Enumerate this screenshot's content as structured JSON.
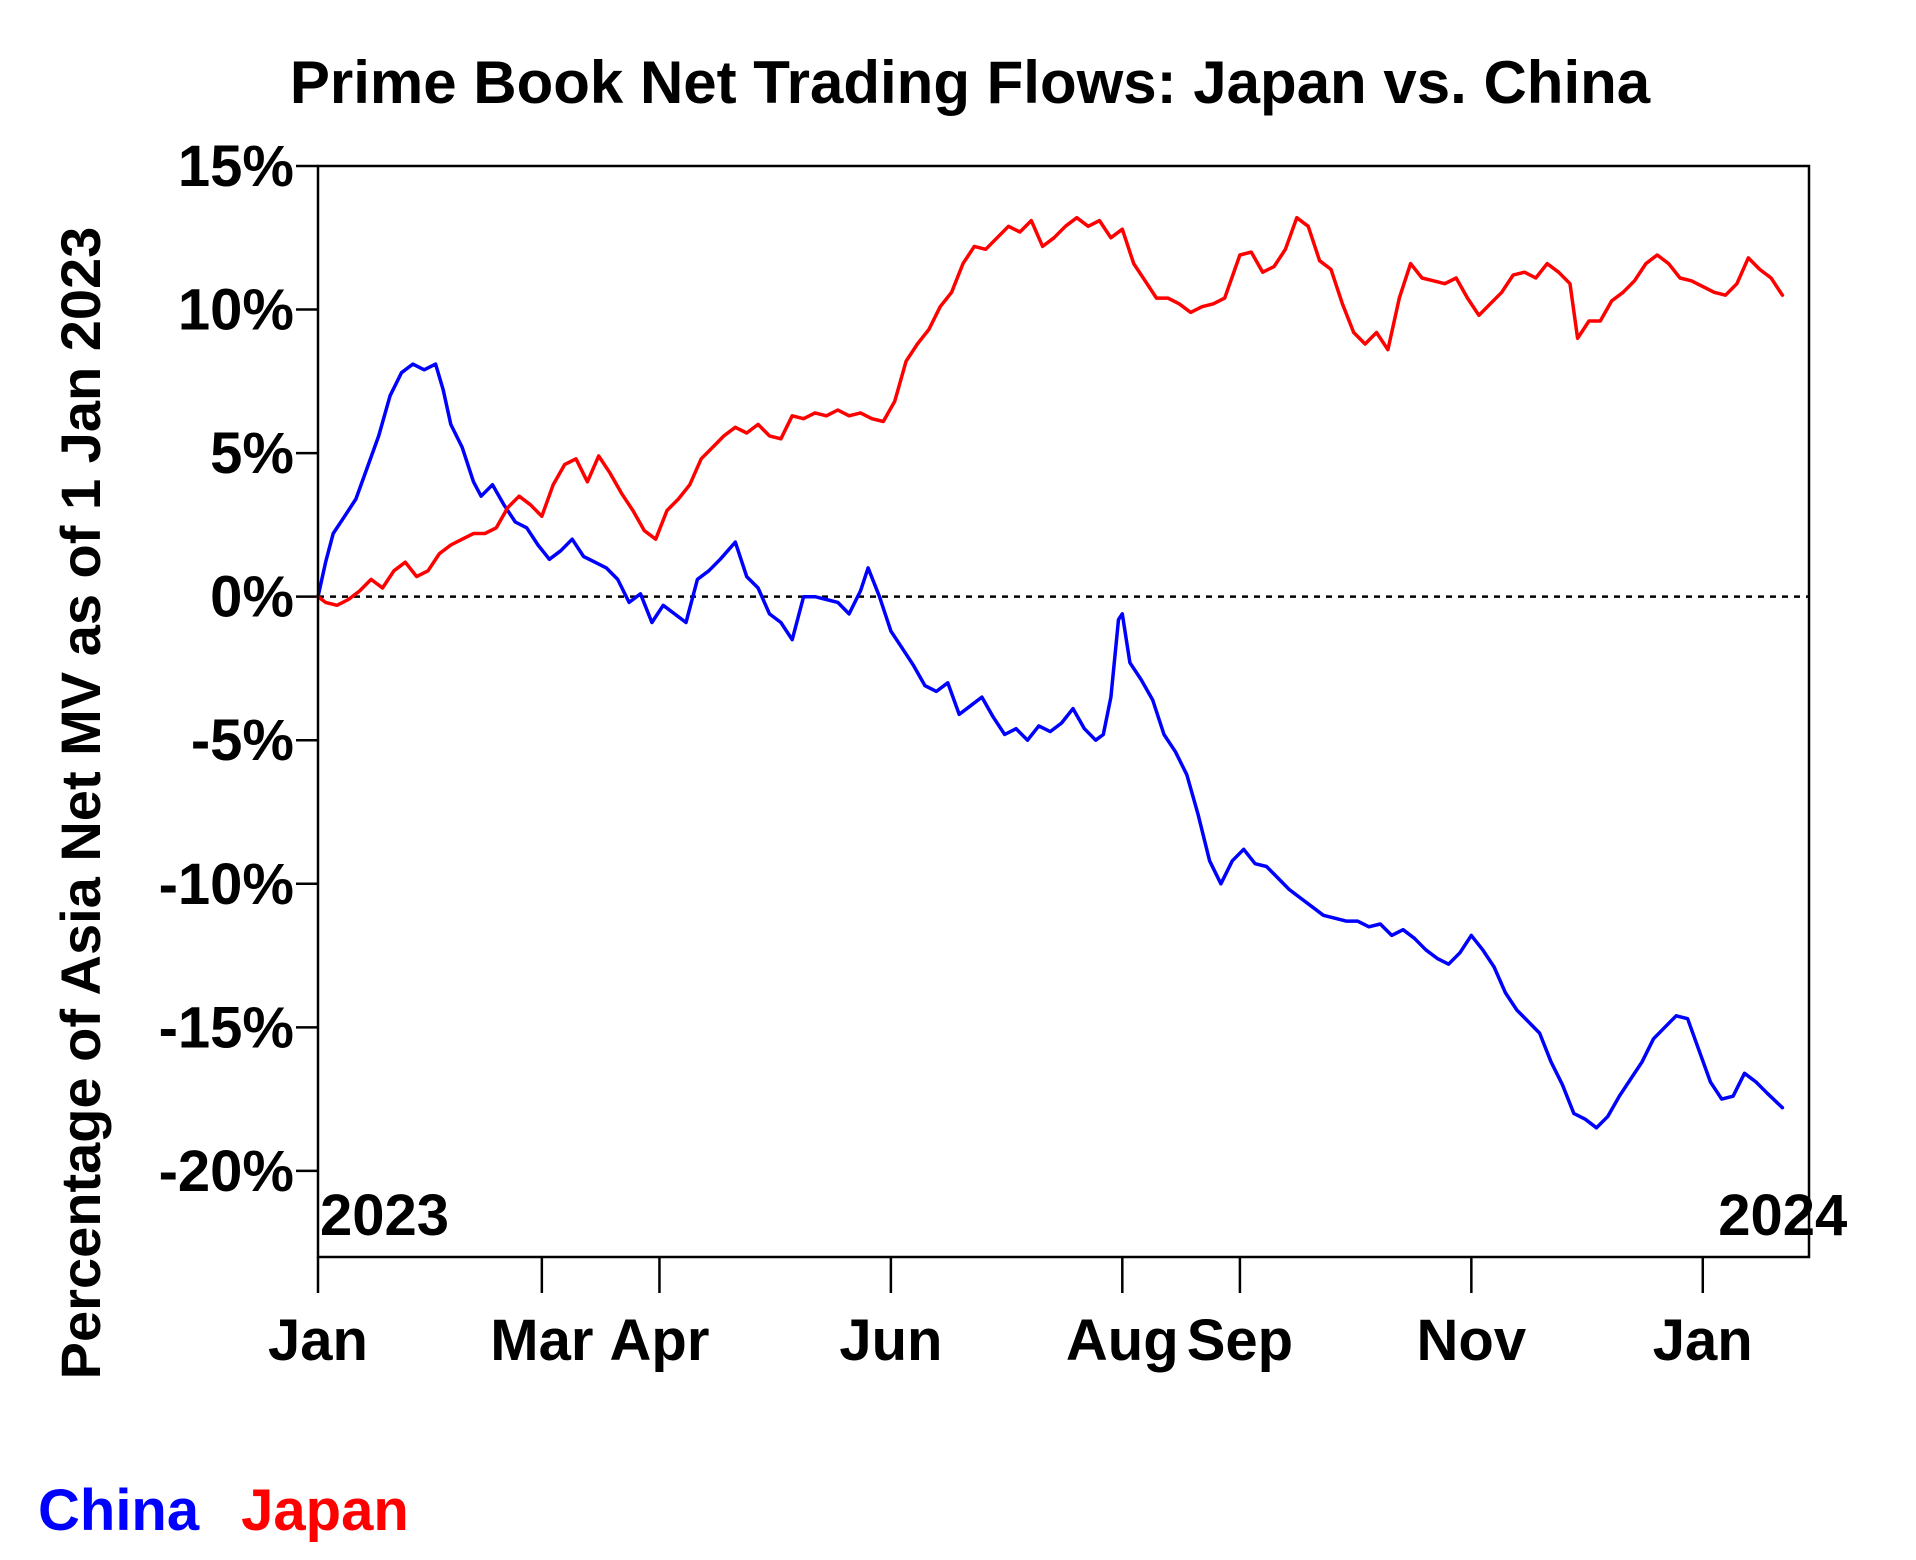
{
  "chart_data": {
    "type": "line",
    "title": "Prime Book Net Trading Flows: Japan vs. China",
    "xlabel": "",
    "ylabel": "Percentage of Asia Net MV as of 1 Jan 2023",
    "ylim": [
      -23,
      15
    ],
    "xlim": [
      "2023-01-01",
      "2024-01-29"
    ],
    "y_ticks": [
      {
        "value": 15,
        "label": "15%"
      },
      {
        "value": 10,
        "label": "10%"
      },
      {
        "value": 5,
        "label": "5%"
      },
      {
        "value": 0,
        "label": "0%"
      },
      {
        "value": -5,
        "label": "-5%"
      },
      {
        "value": -10,
        "label": "-10%"
      },
      {
        "value": -15,
        "label": "-15%"
      },
      {
        "value": -20,
        "label": "-20%"
      }
    ],
    "x_ticks": [
      {
        "date": "2023-01-01",
        "label": "Jan"
      },
      {
        "date": "2023-03-01",
        "label": "Mar"
      },
      {
        "date": "2023-04-01",
        "label": "Apr"
      },
      {
        "date": "2023-06-01",
        "label": "Jun"
      },
      {
        "date": "2023-08-01",
        "label": "Aug"
      },
      {
        "date": "2023-09-01",
        "label": "Sep"
      },
      {
        "date": "2023-11-01",
        "label": "Nov"
      },
      {
        "date": "2024-01-01",
        "label": "Jan"
      }
    ],
    "year_labels": [
      {
        "date": "2023-01-01",
        "label": "2023"
      },
      {
        "date": "2024-01-01",
        "label": "2024"
      }
    ],
    "reference_line": {
      "value": 0,
      "style": "dotted"
    },
    "grid": false,
    "legend_placement": "bottom-left",
    "series": [
      {
        "name": "China",
        "color": "#0000ff",
        "points": [
          [
            "2023-01-01",
            0.0
          ],
          [
            "2023-01-03",
            1.2
          ],
          [
            "2023-01-05",
            2.2
          ],
          [
            "2023-01-08",
            2.8
          ],
          [
            "2023-01-11",
            3.4
          ],
          [
            "2023-01-14",
            4.5
          ],
          [
            "2023-01-17",
            5.6
          ],
          [
            "2023-01-20",
            7.0
          ],
          [
            "2023-01-23",
            7.8
          ],
          [
            "2023-01-26",
            8.1
          ],
          [
            "2023-01-29",
            7.9
          ],
          [
            "2023-02-01",
            8.1
          ],
          [
            "2023-02-03",
            7.2
          ],
          [
            "2023-02-05",
            6.0
          ],
          [
            "2023-02-08",
            5.2
          ],
          [
            "2023-02-11",
            4.0
          ],
          [
            "2023-02-13",
            3.5
          ],
          [
            "2023-02-16",
            3.9
          ],
          [
            "2023-02-19",
            3.2
          ],
          [
            "2023-02-22",
            2.6
          ],
          [
            "2023-02-25",
            2.4
          ],
          [
            "2023-02-28",
            1.8
          ],
          [
            "2023-03-03",
            1.3
          ],
          [
            "2023-03-06",
            1.6
          ],
          [
            "2023-03-09",
            2.0
          ],
          [
            "2023-03-12",
            1.4
          ],
          [
            "2023-03-15",
            1.2
          ],
          [
            "2023-03-18",
            1.0
          ],
          [
            "2023-03-21",
            0.6
          ],
          [
            "2023-03-24",
            -0.2
          ],
          [
            "2023-03-27",
            0.1
          ],
          [
            "2023-03-30",
            -0.9
          ],
          [
            "2023-04-02",
            -0.3
          ],
          [
            "2023-04-05",
            -0.6
          ],
          [
            "2023-04-08",
            -0.9
          ],
          [
            "2023-04-11",
            0.6
          ],
          [
            "2023-04-14",
            0.9
          ],
          [
            "2023-04-17",
            1.3
          ],
          [
            "2023-04-21",
            1.9
          ],
          [
            "2023-04-24",
            0.7
          ],
          [
            "2023-04-27",
            0.3
          ],
          [
            "2023-04-30",
            -0.6
          ],
          [
            "2023-05-03",
            -0.9
          ],
          [
            "2023-05-06",
            -1.5
          ],
          [
            "2023-05-09",
            0.0
          ],
          [
            "2023-05-12",
            0.0
          ],
          [
            "2023-05-15",
            -0.1
          ],
          [
            "2023-05-18",
            -0.2
          ],
          [
            "2023-05-21",
            -0.6
          ],
          [
            "2023-05-24",
            0.2
          ],
          [
            "2023-05-26",
            1.0
          ],
          [
            "2023-05-29",
            0.0
          ],
          [
            "2023-06-01",
            -1.2
          ],
          [
            "2023-06-04",
            -1.8
          ],
          [
            "2023-06-07",
            -2.4
          ],
          [
            "2023-06-10",
            -3.1
          ],
          [
            "2023-06-13",
            -3.3
          ],
          [
            "2023-06-16",
            -3.0
          ],
          [
            "2023-06-19",
            -4.1
          ],
          [
            "2023-06-22",
            -3.8
          ],
          [
            "2023-06-25",
            -3.5
          ],
          [
            "2023-06-28",
            -4.2
          ],
          [
            "2023-07-01",
            -4.8
          ],
          [
            "2023-07-04",
            -4.6
          ],
          [
            "2023-07-07",
            -5.0
          ],
          [
            "2023-07-10",
            -4.5
          ],
          [
            "2023-07-13",
            -4.7
          ],
          [
            "2023-07-16",
            -4.4
          ],
          [
            "2023-07-19",
            -3.9
          ],
          [
            "2023-07-22",
            -4.6
          ],
          [
            "2023-07-25",
            -5.0
          ],
          [
            "2023-07-27",
            -4.8
          ],
          [
            "2023-07-29",
            -3.5
          ],
          [
            "2023-07-31",
            -0.8
          ],
          [
            "2023-08-01",
            -0.6
          ],
          [
            "2023-08-03",
            -2.3
          ],
          [
            "2023-08-06",
            -2.9
          ],
          [
            "2023-08-09",
            -3.6
          ],
          [
            "2023-08-12",
            -4.8
          ],
          [
            "2023-08-15",
            -5.4
          ],
          [
            "2023-08-18",
            -6.2
          ],
          [
            "2023-08-21",
            -7.6
          ],
          [
            "2023-08-24",
            -9.2
          ],
          [
            "2023-08-27",
            -10.0
          ],
          [
            "2023-08-30",
            -9.2
          ],
          [
            "2023-09-02",
            -8.8
          ],
          [
            "2023-09-05",
            -9.3
          ],
          [
            "2023-09-08",
            -9.4
          ],
          [
            "2023-09-11",
            -9.8
          ],
          [
            "2023-09-14",
            -10.2
          ],
          [
            "2023-09-17",
            -10.5
          ],
          [
            "2023-09-20",
            -10.8
          ],
          [
            "2023-09-23",
            -11.1
          ],
          [
            "2023-09-26",
            -11.2
          ],
          [
            "2023-09-29",
            -11.3
          ],
          [
            "2023-10-02",
            -11.3
          ],
          [
            "2023-10-05",
            -11.5
          ],
          [
            "2023-10-08",
            -11.4
          ],
          [
            "2023-10-11",
            -11.8
          ],
          [
            "2023-10-14",
            -11.6
          ],
          [
            "2023-10-17",
            -11.9
          ],
          [
            "2023-10-20",
            -12.3
          ],
          [
            "2023-10-23",
            -12.6
          ],
          [
            "2023-10-26",
            -12.8
          ],
          [
            "2023-10-29",
            -12.4
          ],
          [
            "2023-11-01",
            -11.8
          ],
          [
            "2023-11-04",
            -12.3
          ],
          [
            "2023-11-07",
            -12.9
          ],
          [
            "2023-11-10",
            -13.8
          ],
          [
            "2023-11-13",
            -14.4
          ],
          [
            "2023-11-16",
            -14.8
          ],
          [
            "2023-11-19",
            -15.2
          ],
          [
            "2023-11-22",
            -16.2
          ],
          [
            "2023-11-25",
            -17.0
          ],
          [
            "2023-11-28",
            -18.0
          ],
          [
            "2023-12-01",
            -18.2
          ],
          [
            "2023-12-04",
            -18.5
          ],
          [
            "2023-12-07",
            -18.1
          ],
          [
            "2023-12-10",
            -17.4
          ],
          [
            "2023-12-13",
            -16.8
          ],
          [
            "2023-12-16",
            -16.2
          ],
          [
            "2023-12-19",
            -15.4
          ],
          [
            "2023-12-22",
            -15.0
          ],
          [
            "2023-12-25",
            -14.6
          ],
          [
            "2023-12-28",
            -14.7
          ],
          [
            "2023-12-31",
            -15.8
          ],
          [
            "2024-01-03",
            -16.9
          ],
          [
            "2024-01-06",
            -17.5
          ],
          [
            "2024-01-09",
            -17.4
          ],
          [
            "2024-01-12",
            -16.6
          ],
          [
            "2024-01-15",
            -16.9
          ],
          [
            "2024-01-18",
            -17.3
          ],
          [
            "2024-01-22",
            -17.8
          ]
        ]
      },
      {
        "name": "Japan",
        "color": "#ff0000",
        "points": [
          [
            "2023-01-01",
            0.0
          ],
          [
            "2023-01-03",
            -0.2
          ],
          [
            "2023-01-06",
            -0.3
          ],
          [
            "2023-01-09",
            -0.1
          ],
          [
            "2023-01-12",
            0.2
          ],
          [
            "2023-01-15",
            0.6
          ],
          [
            "2023-01-18",
            0.3
          ],
          [
            "2023-01-21",
            0.9
          ],
          [
            "2023-01-24",
            1.2
          ],
          [
            "2023-01-27",
            0.7
          ],
          [
            "2023-01-30",
            0.9
          ],
          [
            "2023-02-02",
            1.5
          ],
          [
            "2023-02-05",
            1.8
          ],
          [
            "2023-02-08",
            2.0
          ],
          [
            "2023-02-11",
            2.2
          ],
          [
            "2023-02-14",
            2.2
          ],
          [
            "2023-02-17",
            2.4
          ],
          [
            "2023-02-20",
            3.1
          ],
          [
            "2023-02-23",
            3.5
          ],
          [
            "2023-02-26",
            3.2
          ],
          [
            "2023-03-01",
            2.8
          ],
          [
            "2023-03-04",
            3.9
          ],
          [
            "2023-03-07",
            4.6
          ],
          [
            "2023-03-10",
            4.8
          ],
          [
            "2023-03-13",
            4.0
          ],
          [
            "2023-03-16",
            4.9
          ],
          [
            "2023-03-19",
            4.3
          ],
          [
            "2023-03-22",
            3.6
          ],
          [
            "2023-03-25",
            3.0
          ],
          [
            "2023-03-28",
            2.3
          ],
          [
            "2023-03-31",
            2.0
          ],
          [
            "2023-04-03",
            3.0
          ],
          [
            "2023-04-06",
            3.4
          ],
          [
            "2023-04-09",
            3.9
          ],
          [
            "2023-04-12",
            4.8
          ],
          [
            "2023-04-15",
            5.2
          ],
          [
            "2023-04-18",
            5.6
          ],
          [
            "2023-04-21",
            5.9
          ],
          [
            "2023-04-24",
            5.7
          ],
          [
            "2023-04-27",
            6.0
          ],
          [
            "2023-04-30",
            5.6
          ],
          [
            "2023-05-03",
            5.5
          ],
          [
            "2023-05-06",
            6.3
          ],
          [
            "2023-05-09",
            6.2
          ],
          [
            "2023-05-12",
            6.4
          ],
          [
            "2023-05-15",
            6.3
          ],
          [
            "2023-05-18",
            6.5
          ],
          [
            "2023-05-21",
            6.3
          ],
          [
            "2023-05-24",
            6.4
          ],
          [
            "2023-05-27",
            6.2
          ],
          [
            "2023-05-30",
            6.1
          ],
          [
            "2023-06-02",
            6.8
          ],
          [
            "2023-06-05",
            8.2
          ],
          [
            "2023-06-08",
            8.8
          ],
          [
            "2023-06-11",
            9.3
          ],
          [
            "2023-06-14",
            10.1
          ],
          [
            "2023-06-17",
            10.6
          ],
          [
            "2023-06-20",
            11.6
          ],
          [
            "2023-06-23",
            12.2
          ],
          [
            "2023-06-26",
            12.1
          ],
          [
            "2023-06-29",
            12.5
          ],
          [
            "2023-07-02",
            12.9
          ],
          [
            "2023-07-05",
            12.7
          ],
          [
            "2023-07-08",
            13.1
          ],
          [
            "2023-07-11",
            12.2
          ],
          [
            "2023-07-14",
            12.5
          ],
          [
            "2023-07-17",
            12.9
          ],
          [
            "2023-07-20",
            13.2
          ],
          [
            "2023-07-23",
            12.9
          ],
          [
            "2023-07-26",
            13.1
          ],
          [
            "2023-07-29",
            12.5
          ],
          [
            "2023-08-01",
            12.8
          ],
          [
            "2023-08-04",
            11.6
          ],
          [
            "2023-08-07",
            11.0
          ],
          [
            "2023-08-10",
            10.4
          ],
          [
            "2023-08-13",
            10.4
          ],
          [
            "2023-08-16",
            10.2
          ],
          [
            "2023-08-19",
            9.9
          ],
          [
            "2023-08-22",
            10.1
          ],
          [
            "2023-08-25",
            10.2
          ],
          [
            "2023-08-28",
            10.4
          ],
          [
            "2023-09-01",
            11.9
          ],
          [
            "2023-09-04",
            12.0
          ],
          [
            "2023-09-07",
            11.3
          ],
          [
            "2023-09-10",
            11.5
          ],
          [
            "2023-09-13",
            12.1
          ],
          [
            "2023-09-16",
            13.2
          ],
          [
            "2023-09-19",
            12.9
          ],
          [
            "2023-09-22",
            11.7
          ],
          [
            "2023-09-25",
            11.4
          ],
          [
            "2023-09-28",
            10.2
          ],
          [
            "2023-10-01",
            9.2
          ],
          [
            "2023-10-04",
            8.8
          ],
          [
            "2023-10-07",
            9.2
          ],
          [
            "2023-10-10",
            8.6
          ],
          [
            "2023-10-13",
            10.4
          ],
          [
            "2023-10-16",
            11.6
          ],
          [
            "2023-10-19",
            11.1
          ],
          [
            "2023-10-22",
            11.0
          ],
          [
            "2023-10-25",
            10.9
          ],
          [
            "2023-10-28",
            11.1
          ],
          [
            "2023-10-31",
            10.4
          ],
          [
            "2023-11-03",
            9.8
          ],
          [
            "2023-11-06",
            10.2
          ],
          [
            "2023-11-09",
            10.6
          ],
          [
            "2023-11-12",
            11.2
          ],
          [
            "2023-11-15",
            11.3
          ],
          [
            "2023-11-18",
            11.1
          ],
          [
            "2023-11-21",
            11.6
          ],
          [
            "2023-11-24",
            11.3
          ],
          [
            "2023-11-27",
            10.9
          ],
          [
            "2023-11-29",
            9.0
          ],
          [
            "2023-12-02",
            9.6
          ],
          [
            "2023-12-05",
            9.6
          ],
          [
            "2023-12-08",
            10.3
          ],
          [
            "2023-12-11",
            10.6
          ],
          [
            "2023-12-14",
            11.0
          ],
          [
            "2023-12-17",
            11.6
          ],
          [
            "2023-12-20",
            11.9
          ],
          [
            "2023-12-23",
            11.6
          ],
          [
            "2023-12-26",
            11.1
          ],
          [
            "2023-12-29",
            11.0
          ],
          [
            "2024-01-01",
            10.8
          ],
          [
            "2024-01-04",
            10.6
          ],
          [
            "2024-01-07",
            10.5
          ],
          [
            "2024-01-10",
            10.9
          ],
          [
            "2024-01-13",
            11.8
          ],
          [
            "2024-01-16",
            11.4
          ],
          [
            "2024-01-19",
            11.1
          ],
          [
            "2024-01-22",
            10.5
          ]
        ]
      }
    ]
  }
}
